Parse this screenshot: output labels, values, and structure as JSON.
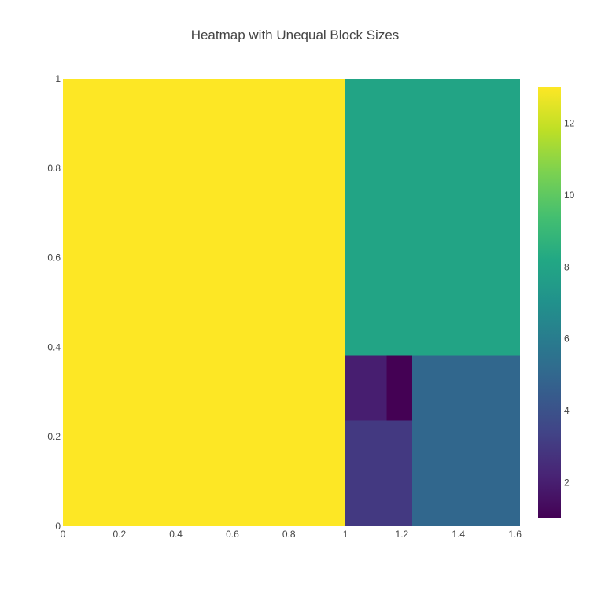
{
  "chart_data": {
    "type": "heatmap",
    "title": "Heatmap with Unequal Block Sizes",
    "xlabel": "",
    "ylabel": "",
    "xlim": [
      0,
      1.618
    ],
    "ylim": [
      0,
      1
    ],
    "x_edges": [
      0,
      1,
      1.146,
      1.236,
      1.618
    ],
    "y_edges": [
      0,
      0.236,
      0.382,
      1
    ],
    "x_ticks": [
      "0",
      "0.2",
      "0.4",
      "0.6",
      "0.8",
      "1",
      "1.2",
      "1.4",
      "1.6"
    ],
    "x_tick_values": [
      0,
      0.2,
      0.4,
      0.6,
      0.8,
      1,
      1.2,
      1.4,
      1.6
    ],
    "y_ticks": [
      "0",
      "0.2",
      "0.4",
      "0.6",
      "0.8",
      "1"
    ],
    "y_tick_values": [
      0,
      0.2,
      0.4,
      0.6,
      0.8,
      1
    ],
    "cells": [
      {
        "x0": 0,
        "x1": 1,
        "y0": 0,
        "y1": 1,
        "value": 13
      },
      {
        "x0": 1,
        "x1": 1.618,
        "y0": 0.382,
        "y1": 1,
        "value": 8
      },
      {
        "x0": 1.236,
        "x1": 1.618,
        "y0": 0,
        "y1": 0.382,
        "value": 5
      },
      {
        "x0": 1,
        "x1": 1.236,
        "y0": 0,
        "y1": 0.236,
        "value": 3
      },
      {
        "x0": 1,
        "x1": 1.146,
        "y0": 0.236,
        "y1": 0.382,
        "value": 2
      },
      {
        "x0": 1.146,
        "x1": 1.236,
        "y0": 0.236,
        "y1": 0.382,
        "value": 1
      }
    ],
    "colorscale": "Viridis",
    "colorbar": {
      "range": [
        1,
        13
      ],
      "ticks": [
        "2",
        "4",
        "6",
        "8",
        "10",
        "12"
      ],
      "tick_values": [
        2,
        4,
        6,
        8,
        10,
        12
      ]
    },
    "grid": false
  }
}
